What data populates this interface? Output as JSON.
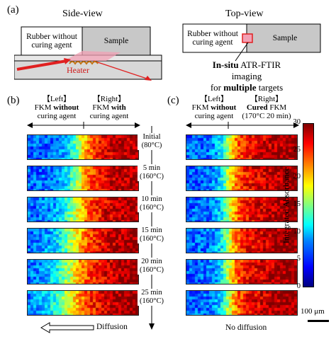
{
  "panel_a": {
    "label": "(a)",
    "side_view": {
      "title": "Side-view",
      "rubber_label": "Rubber without curing agent",
      "sample_label": "Sample",
      "heater_label": "Heater"
    },
    "top_view": {
      "title": "Top-view",
      "rubber_label": "Rubber without curing agent",
      "sample_label": "Sample",
      "caption_line1_bold": "In-situ",
      "caption_line1_rest": " ATR-FTIR imaging",
      "caption_line2_pre": "for ",
      "caption_line2_bold": "multiple",
      "caption_line2_post": " targets"
    }
  },
  "panel_b": {
    "label": "(b)",
    "left_header_1": "【Left】",
    "left_header_2_pre": "FKM ",
    "left_header_2_bold": "without",
    "left_header_3": "curing agent",
    "right_header_1": "【Right】",
    "right_header_2_pre": "FKM ",
    "right_header_2_bold": "with",
    "right_header_3": "curing agent",
    "footer": "Diffusion"
  },
  "panel_c": {
    "label": "(c)",
    "left_header_1": "【Left】",
    "left_header_2_pre": "FKM ",
    "left_header_2_bold": "without",
    "left_header_3": "curing agent",
    "right_header_1": "【Right】",
    "right_header_2_bold": "Cured",
    "right_header_2_post": " FKM",
    "right_header_3": "(170°C 20 min)",
    "footer": "No diffusion"
  },
  "time_labels": [
    {
      "time": "Initial",
      "temp": "(80°C)"
    },
    {
      "time": "5 min",
      "temp": "(160°C)"
    },
    {
      "time": "10 min",
      "temp": "(160°C)"
    },
    {
      "time": "15 min",
      "temp": "(160°C)"
    },
    {
      "time": "20 min",
      "temp": "(160°C)"
    },
    {
      "time": "25 min",
      "temp": "(160°C)"
    }
  ],
  "colorbar": {
    "label": "Integrated Absorbance",
    "ticks": [
      "0",
      "5",
      "10",
      "15",
      "20",
      "25",
      "30"
    ],
    "min": 0,
    "max": 30
  },
  "scale_bar": "100 μm",
  "colors": {
    "sample_gray": "#c8c8c8",
    "heater_red": "#e02020",
    "pink_overlay": "#f2a0b4",
    "heater_text": "#d01818"
  }
}
